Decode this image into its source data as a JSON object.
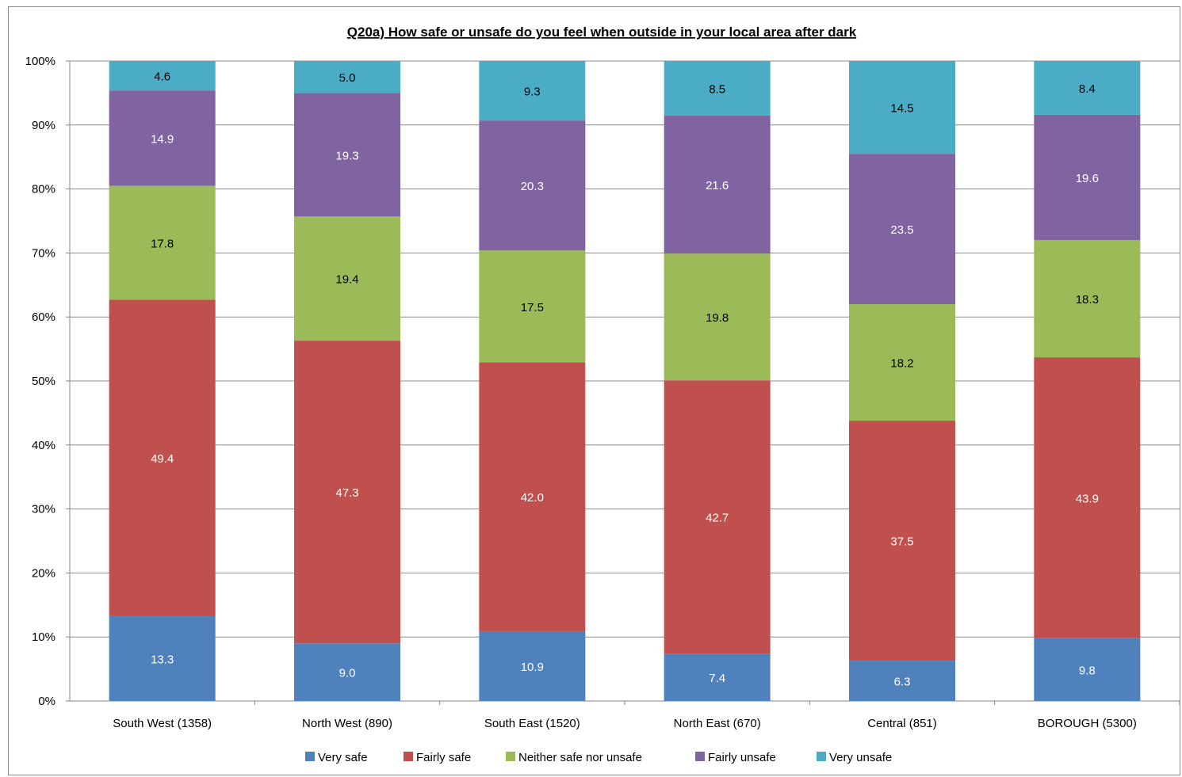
{
  "chart_data": {
    "type": "bar",
    "stacked": "percent",
    "title": "Q20a) How safe or unsafe do you feel when outside in your local area after dark",
    "categories": [
      "South West (1358)",
      "North West (890)",
      "South East (1520)",
      "North East (670)",
      "Central (851)",
      "BOROUGH (5300)"
    ],
    "series": [
      {
        "name": "Very safe",
        "color": "#4f81bd",
        "label_color": "#ffffff",
        "values": [
          13.3,
          9.0,
          10.9,
          7.4,
          6.3,
          9.8
        ]
      },
      {
        "name": "Fairly safe",
        "color": "#c0504d",
        "label_color": "#ffffff",
        "values": [
          49.4,
          47.3,
          42.0,
          42.7,
          37.5,
          43.9
        ]
      },
      {
        "name": "Neither safe nor unsafe",
        "color": "#9bbb59",
        "label_color": "#000000",
        "values": [
          17.8,
          19.4,
          17.5,
          19.8,
          18.2,
          18.3
        ]
      },
      {
        "name": "Fairly unsafe",
        "color": "#8064a2",
        "label_color": "#ffffff",
        "values": [
          14.9,
          19.3,
          20.3,
          21.6,
          23.5,
          19.6
        ]
      },
      {
        "name": "Very unsafe",
        "color": "#4bacc6",
        "label_color": "#000000",
        "values": [
          4.6,
          5.0,
          9.3,
          8.5,
          14.5,
          8.4
        ]
      }
    ],
    "ylim": [
      0,
      100
    ],
    "yticks": [
      "0%",
      "10%",
      "20%",
      "30%",
      "40%",
      "50%",
      "60%",
      "70%",
      "80%",
      "90%",
      "100%"
    ],
    "grid": true,
    "legend_position": "bottom"
  }
}
